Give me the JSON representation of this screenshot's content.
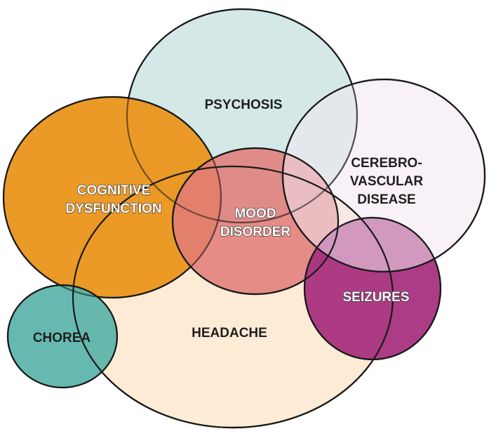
{
  "diagram": {
    "headache": {
      "label": "HEADACHE",
      "color": "#fdebd6"
    },
    "psychosis": {
      "label": "PSYCHOSIS",
      "color": "#d3e8e7"
    },
    "cognitive": {
      "line1": "COGNITIVE",
      "line2": "DYSFUNCTION",
      "color": "#ea961e"
    },
    "mood": {
      "line1": "MOOD",
      "line2": "DISORDER",
      "color": "#e07b78"
    },
    "cerebrovascular": {
      "line1": "CEREBRO-",
      "line2": "VASCULAR",
      "line3": "DISEASE",
      "color": "#f3e6f1"
    },
    "seizures": {
      "label": "SEIZURES",
      "color": "#a8327f"
    },
    "chorea": {
      "label": "CHOREA",
      "color": "#59b3a9"
    }
  }
}
